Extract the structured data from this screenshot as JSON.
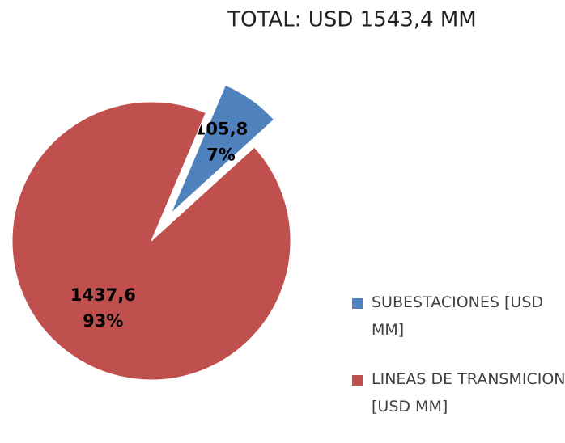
{
  "chart_data": {
    "type": "pie",
    "title": "TOTAL: USD 1543,4 MM",
    "series": [
      {
        "name": "SUBESTACIONES [USD MM]",
        "color": "#4f81bd"
      },
      {
        "name": "LINEAS DE TRANSMICION [USD MM]",
        "color": "#c0504d"
      }
    ],
    "values": [
      105.8,
      1437.6
    ],
    "value_labels": [
      "105,8",
      "1437,6"
    ],
    "percents": [
      7,
      93
    ],
    "percent_labels": [
      "7%",
      "93%"
    ],
    "exploded": [
      true,
      false
    ],
    "legend": "right"
  }
}
